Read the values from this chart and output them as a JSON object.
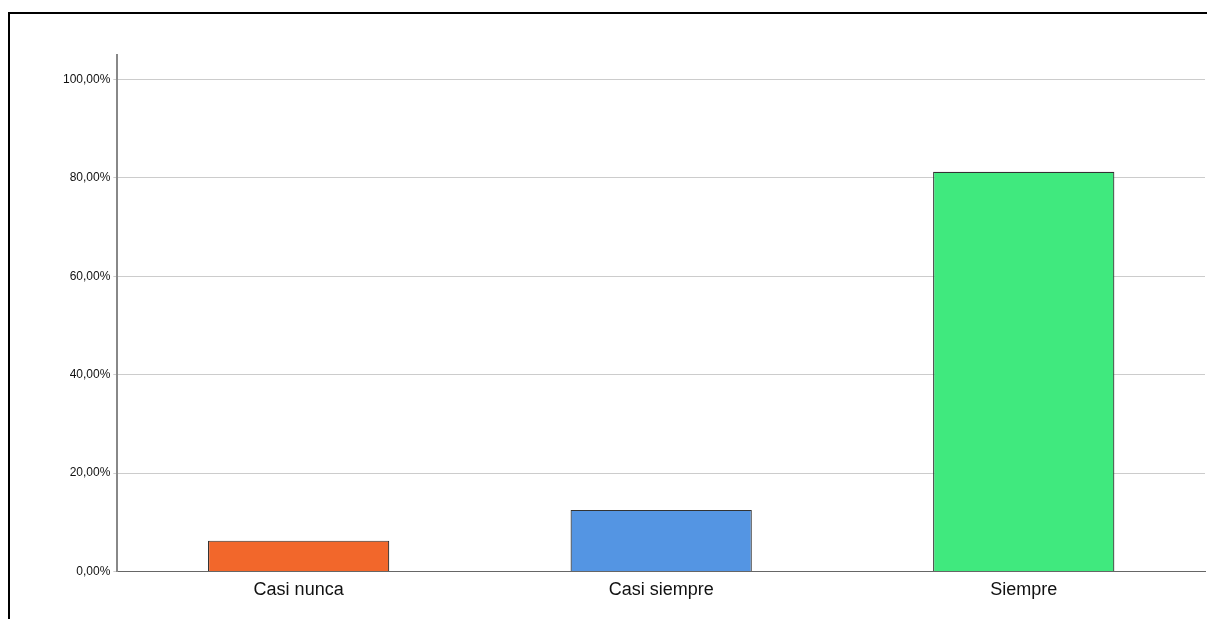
{
  "chart_data": {
    "type": "bar",
    "categories": [
      "Casi nunca",
      "Casi siempre",
      "Siempre"
    ],
    "values": [
      6.25,
      12.5,
      81.25
    ],
    "colors": [
      "#f2672b",
      "#5495e3",
      "#40e97e"
    ],
    "ylim": [
      0,
      105
    ],
    "yticks": [
      {
        "value": 0,
        "label": "0,00%"
      },
      {
        "value": 20,
        "label": "20,00%"
      },
      {
        "value": 40,
        "label": "40,00%"
      },
      {
        "value": 60,
        "label": "60,00%"
      },
      {
        "value": 80,
        "label": "80,00%"
      },
      {
        "value": 100,
        "label": "100,00%"
      }
    ],
    "grid": "y",
    "legend": false
  }
}
